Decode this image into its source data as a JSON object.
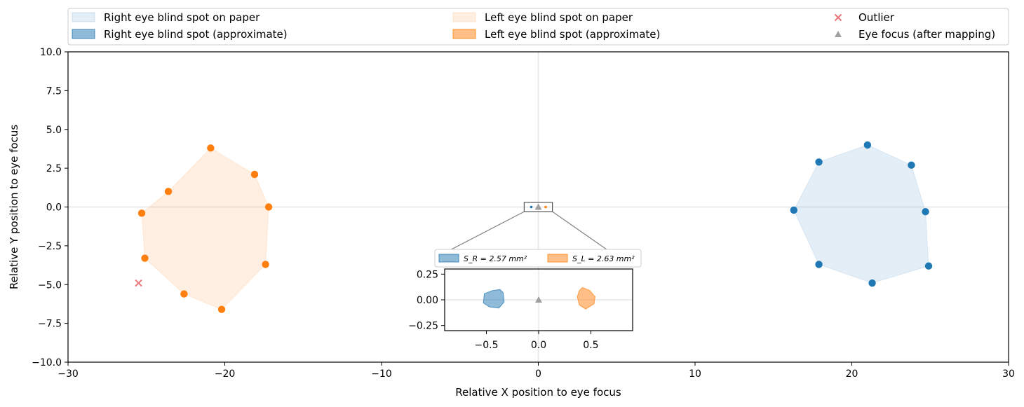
{
  "chart_data": [
    {
      "type": "scatter",
      "xlabel": "Relative X position to eye focus",
      "ylabel": "Relative Y position to eye focus",
      "xlim": [
        -30,
        30
      ],
      "ylim": [
        -10,
        10
      ],
      "xticks": [
        -30,
        -20,
        -10,
        0,
        10,
        20,
        30
      ],
      "yticks": [
        -10.0,
        -7.5,
        -5.0,
        -2.5,
        0.0,
        2.5,
        5.0,
        7.5,
        10.0
      ],
      "xtick_labels": [
        "−30",
        "−20",
        "−10",
        "0",
        "10",
        "20",
        "30"
      ],
      "ytick_labels": [
        "−10.0",
        "−7.5",
        "−5.0",
        "−2.5",
        "0.0",
        "2.5",
        "5.0",
        "7.5",
        "10.0"
      ],
      "legend_position": "top (above plot, 3 columns)",
      "legend": [
        {
          "label": "Right eye blind spot on paper",
          "color": "#1f77b4",
          "kind": "fill-light"
        },
        {
          "label": "Right eye blind spot (approximate)",
          "color": "#1f77b4",
          "kind": "fill"
        },
        {
          "label": "Left eye blind spot on paper",
          "color": "#ff7f0e",
          "kind": "fill-light"
        },
        {
          "label": "Left eye blind spot (approximate)",
          "color": "#ff7f0e",
          "kind": "fill"
        },
        {
          "label": "Outlier",
          "color": "#e8767a",
          "kind": "x-marker"
        },
        {
          "label": "Eye focus (after mapping)",
          "color": "#a0a0a0",
          "kind": "triangle"
        }
      ],
      "series": [
        {
          "name": "Right eye blind spot on paper",
          "color": "#1f77b4",
          "points": [
            [
              21.0,
              4.0
            ],
            [
              23.8,
              2.7
            ],
            [
              24.7,
              -0.3
            ],
            [
              24.9,
              -3.8
            ],
            [
              21.3,
              -4.9
            ],
            [
              17.9,
              -3.7
            ],
            [
              16.3,
              -0.2
            ],
            [
              17.9,
              2.9
            ]
          ]
        },
        {
          "name": "Left eye blind spot on paper",
          "color": "#ff7f0e",
          "points": [
            [
              -20.9,
              3.8
            ],
            [
              -18.1,
              2.1
            ],
            [
              -17.2,
              0.0
            ],
            [
              -17.4,
              -3.7
            ],
            [
              -20.2,
              -6.6
            ],
            [
              -22.6,
              -5.6
            ],
            [
              -25.1,
              -3.3
            ],
            [
              -25.3,
              -0.4
            ],
            [
              -23.6,
              1.0
            ]
          ]
        },
        {
          "name": "Outlier",
          "color": "#e8767a",
          "points": [
            [
              -25.5,
              -4.9
            ]
          ]
        },
        {
          "name": "Eye focus (after mapping)",
          "color": "#a0a0a0",
          "points": [
            [
              0.0,
              0.0
            ]
          ]
        }
      ],
      "grid": "crosshair lines at x=0 and y=0"
    },
    {
      "type": "area",
      "inset": true,
      "xlim": [
        -0.9,
        0.9
      ],
      "ylim": [
        -0.3,
        0.3
      ],
      "xticks": [
        -0.5,
        0.0,
        0.5
      ],
      "yticks": [
        -0.25,
        0.0,
        0.25
      ],
      "xtick_labels": [
        "−0.5",
        "0.0",
        "0.5"
      ],
      "ytick_labels": [
        "−0.25",
        "0.00",
        "0.25"
      ],
      "legend_position": "top (above inset)",
      "legend": [
        {
          "label": "S_R = 2.57 mm²",
          "color": "#1f77b4"
        },
        {
          "label": "S_L = 2.63 mm²",
          "color": "#ff7f0e"
        }
      ],
      "series": [
        {
          "name": "Right eye blind spot (approximate)",
          "color": "#1f77b4",
          "area": 2.57,
          "polygon": [
            [
              -0.44,
              0.09
            ],
            [
              -0.37,
              0.1
            ],
            [
              -0.34,
              0.07
            ],
            [
              -0.33,
              -0.02
            ],
            [
              -0.38,
              -0.08
            ],
            [
              -0.47,
              -0.07
            ],
            [
              -0.53,
              -0.03
            ],
            [
              -0.52,
              0.06
            ]
          ]
        },
        {
          "name": "Left eye blind spot (approximate)",
          "color": "#ff7f0e",
          "area": 2.63,
          "polygon": [
            [
              0.42,
              0.12
            ],
            [
              0.49,
              0.09
            ],
            [
              0.54,
              0.03
            ],
            [
              0.53,
              -0.04
            ],
            [
              0.45,
              -0.09
            ],
            [
              0.39,
              -0.05
            ],
            [
              0.37,
              0.03
            ],
            [
              0.39,
              0.09
            ]
          ]
        },
        {
          "name": "Eye focus (after mapping)",
          "color": "#a0a0a0",
          "points": [
            [
              0.0,
              0.0
            ]
          ]
        }
      ],
      "grid": "crosshair lines at x=0 and y=0"
    }
  ]
}
